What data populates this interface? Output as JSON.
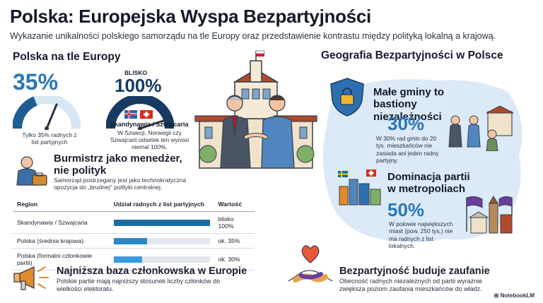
{
  "header": {
    "title": "Polska: Europejska Wyspa Bezpartyjności",
    "subtitle": "Wykazanie unikalności polskiego samorządu na tle Europy oraz przedstawienie kontrastu między polityką lokalną a krajową."
  },
  "europe": {
    "heading": "Polska na tle Europy",
    "poland_stat": {
      "value": "35%",
      "level": 0.35,
      "caption": "Tylko 35% radnych z list partyjnych"
    },
    "scandi_stat": {
      "prefix": "BLISKO",
      "value": "100%",
      "level": 1.0,
      "label": "Skandynawia / Szwajcaria",
      "caption": "W Szwecji, Norwegii czy Szwajcarii odsetek ten wynosi niemal 100%."
    }
  },
  "manager": {
    "title": "Burmistrz jako menedżer, nie polityk",
    "desc": "Samorząd postrzegany jest jako technokratyczna opozycja do „brudnej” polityki centralnej."
  },
  "table": {
    "headers": [
      "Region",
      "Udział radnych z list partyjnych",
      "Wartość"
    ],
    "rows": [
      {
        "region": "Skandynawia / Szwajcaria",
        "share": 1.0,
        "value": "blisko 100%",
        "color": "#1f6d9e"
      },
      {
        "region": "Polska (średnia krajowa)",
        "share": 0.35,
        "value": "ok. 35%",
        "color": "#2b86c4"
      },
      {
        "region": "Polska (formalni członkowie partii)",
        "share": 0.3,
        "value": "ok. 30%",
        "color": "#3a9be0"
      }
    ]
  },
  "membership": {
    "title": "Najniższa baza członkowska w Europie",
    "desc": "Polskie partie mają najniższy stosunek liczby członków do wielkości elektoratu."
  },
  "geo": {
    "heading": "Geografia Bezpartyjności w Polsce",
    "small_gminas": {
      "title": "Małe gminy to bastiony niezależności",
      "value": "30%",
      "desc": "W 30% rad gmin do 20 tys. mieszkańców nie zasiada ani jeden radny partyjny."
    },
    "metropolis": {
      "title": "Dominacja partii w metropoliach",
      "value": "50%",
      "desc": "W połowie największych miast (pow. 250 tys.) nie ma radnych z list lokalnych."
    }
  },
  "trust": {
    "title": "Bezpartyjność buduje zaufanie",
    "desc": "Obecność radnych niezależnych od partii wyraźnie zwiększa poziom zaufania mieszkańców do władz."
  },
  "brand": "NotebookLM",
  "colors": {
    "accent": "#2a77b8",
    "map_bg": "#dce9f6",
    "dark_blue": "#173a63"
  }
}
